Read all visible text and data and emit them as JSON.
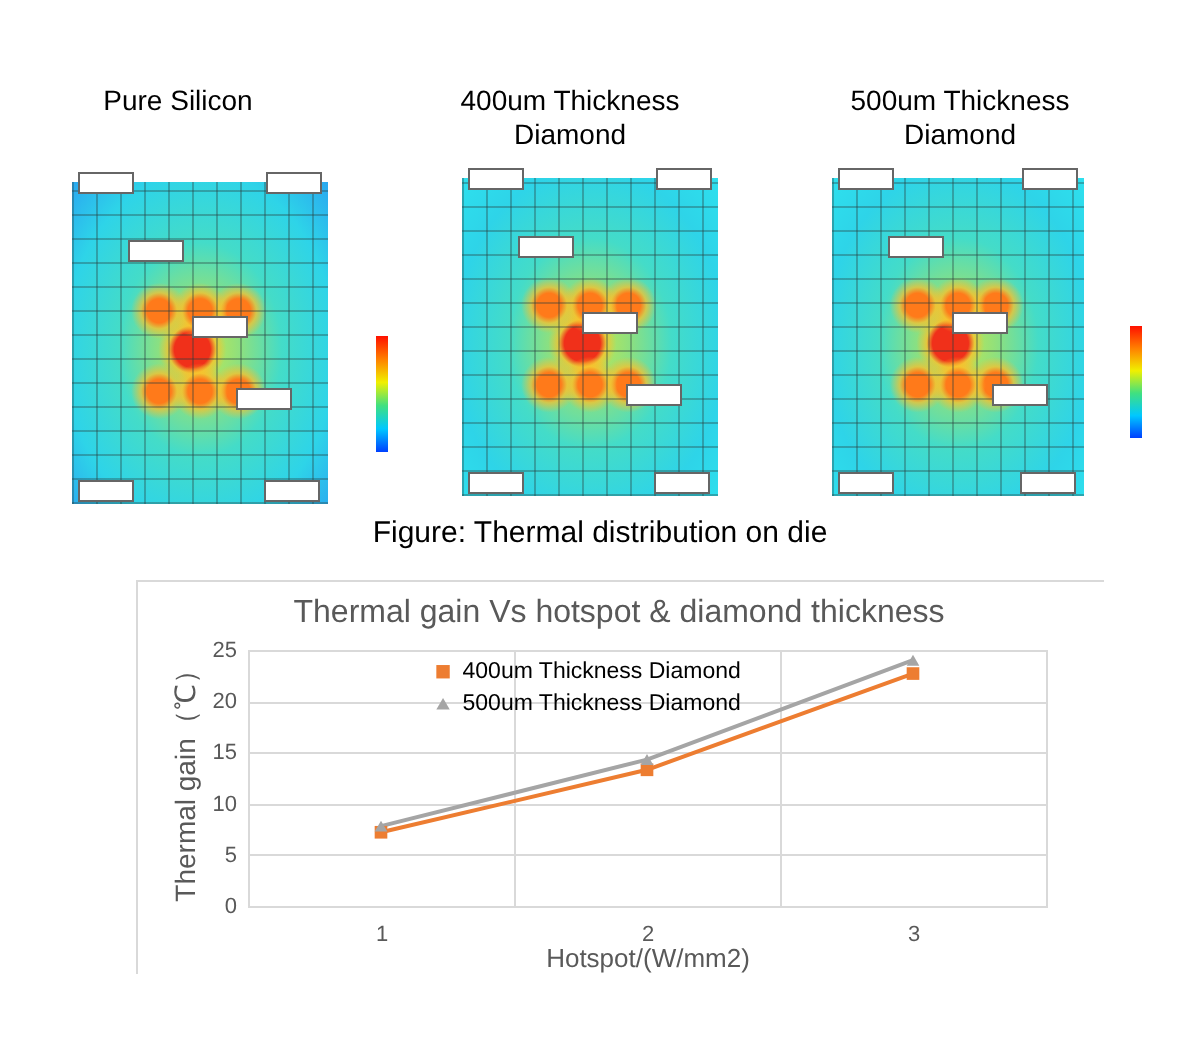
{
  "chart_data": [
    {
      "type": "other",
      "categories": [
        "Pure Silicon",
        "400um Thickness Diamond",
        "500um Thickness Diamond"
      ],
      "annotations": [
        "Figure: Thermal distribution on die"
      ]
    },
    {
      "type": "line",
      "title": "Thermal gain Vs hotspot & diamond thickness",
      "xlabel": "Hotspot/(W/mm2)",
      "ylabel": "Thermal gain（℃）",
      "categories": [
        "1",
        "2",
        "3"
      ],
      "series": [
        {
          "name": "400um Thickness Diamond",
          "color": "#ed7d31",
          "marker": "square",
          "values": [
            7.2,
            13.3,
            22.7
          ]
        },
        {
          "name": "500um Thickness Diamond",
          "color": "#a5a5a5",
          "marker": "triangle",
          "values": [
            7.8,
            14.3,
            24.0
          ]
        }
      ],
      "ylim": [
        0,
        25
      ],
      "yticks": [
        0,
        5,
        10,
        15,
        20,
        25
      ],
      "grid": true,
      "legend": "top",
      "line_style": "solid"
    }
  ]
}
